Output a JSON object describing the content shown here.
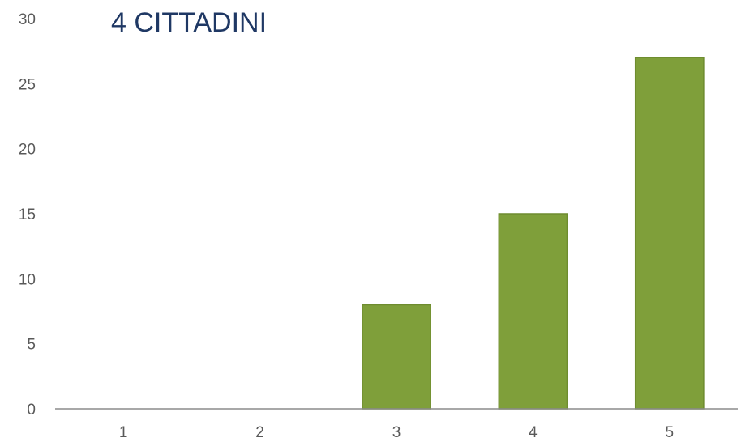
{
  "chart_data": {
    "type": "bar",
    "title": "4 CITTADINI",
    "categories": [
      "1",
      "2",
      "3",
      "4",
      "5"
    ],
    "values": [
      0,
      0,
      8,
      15,
      27
    ],
    "xlabel": "",
    "ylabel": "",
    "ylim": [
      0,
      30
    ],
    "yticks": [
      0,
      5,
      10,
      15,
      20,
      25,
      30
    ],
    "grid": false,
    "legend": "none",
    "colors": {
      "bar": "#7f9f3a",
      "bar_stroke": "#6e8c2f",
      "axis": "#8c8c8c",
      "tick_text": "#595959",
      "title": "#1f3864"
    }
  }
}
